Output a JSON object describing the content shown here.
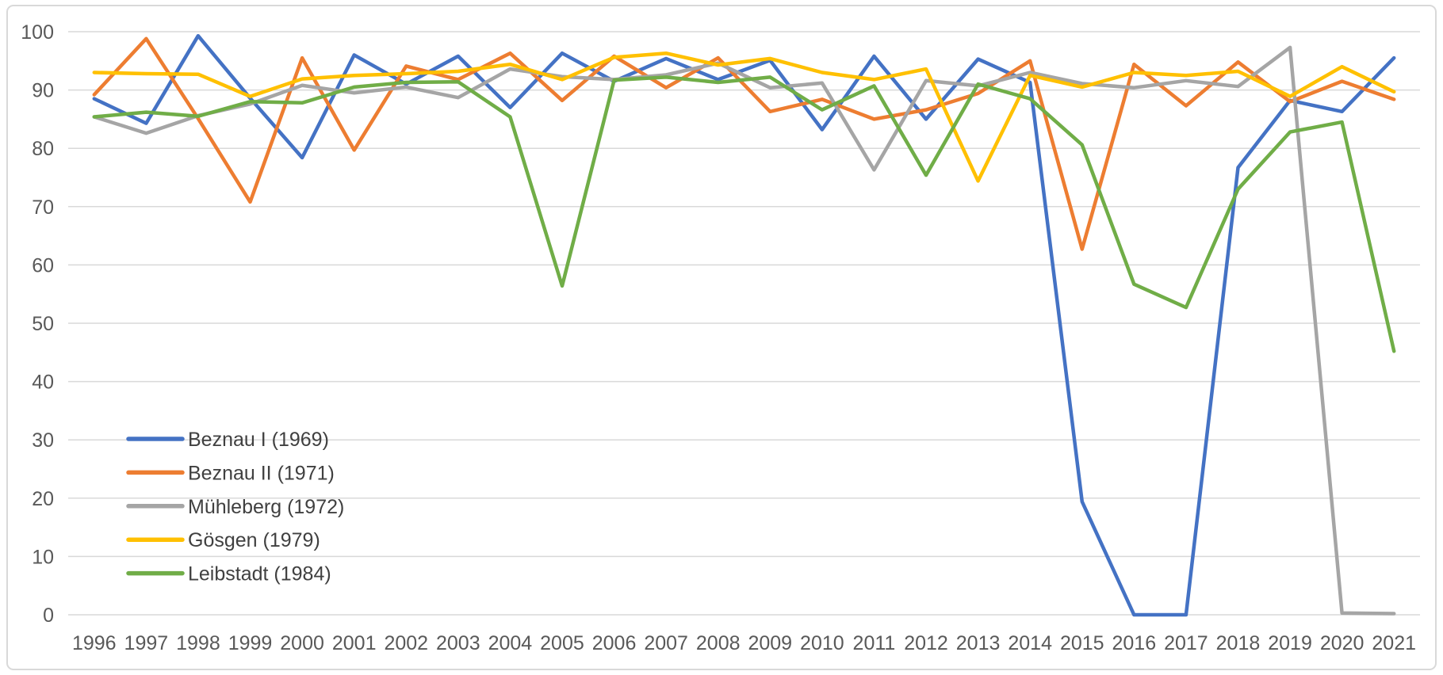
{
  "chart_data": {
    "type": "line",
    "title": "",
    "xlabel": "",
    "ylabel": "",
    "x": [
      1996,
      1997,
      1998,
      1999,
      2000,
      2001,
      2002,
      2003,
      2004,
      2005,
      2006,
      2007,
      2008,
      2009,
      2010,
      2011,
      2012,
      2013,
      2014,
      2015,
      2016,
      2017,
      2018,
      2019,
      2020,
      2021
    ],
    "y_axis": {
      "min": 0,
      "max": 100,
      "tick_step": 10,
      "ticks": [
        0,
        10,
        20,
        30,
        40,
        50,
        60,
        70,
        80,
        90,
        100
      ]
    },
    "grid": true,
    "legend_position": "inside-bottom-left",
    "series": [
      {
        "name": "Beznau I (1969)",
        "color": "#4472C4",
        "values": [
          88.5,
          84.3,
          99.3,
          88.6,
          78.4,
          96.0,
          91.0,
          95.8,
          87.0,
          96.3,
          91.5,
          95.4,
          91.8,
          95.1,
          83.2,
          95.8,
          85.0,
          95.3,
          91.3,
          19.4,
          0.0,
          0.0,
          76.7,
          88.2,
          86.3,
          95.5
        ]
      },
      {
        "name": "Beznau II (1971)",
        "color": "#ED7D31",
        "values": [
          89.2,
          98.8,
          85.1,
          70.8,
          95.5,
          79.7,
          94.1,
          91.8,
          96.3,
          88.2,
          95.8,
          90.4,
          95.5,
          86.3,
          88.4,
          85.0,
          86.6,
          89.4,
          95.0,
          62.7,
          94.4,
          87.3,
          94.8,
          88.0,
          91.5,
          88.4
        ]
      },
      {
        "name": "Mühleberg (1972)",
        "color": "#A5A5A5",
        "values": [
          85.4,
          82.6,
          85.6,
          87.6,
          90.8,
          89.5,
          90.5,
          88.7,
          93.6,
          92.3,
          91.8,
          92.6,
          94.6,
          90.4,
          91.2,
          76.3,
          91.6,
          90.7,
          93.0,
          91.1,
          90.4,
          91.6,
          90.6,
          97.3,
          0.3,
          0.2
        ]
      },
      {
        "name": "Gösgen (1979)",
        "color": "#FFC000",
        "values": [
          93.0,
          92.8,
          92.7,
          88.9,
          91.9,
          92.5,
          92.8,
          93.2,
          94.4,
          91.8,
          95.6,
          96.3,
          94.3,
          95.4,
          93.0,
          91.8,
          93.6,
          74.4,
          92.5,
          90.5,
          93.0,
          92.5,
          93.2,
          88.9,
          94.0,
          89.7
        ]
      },
      {
        "name": "Leibstadt (1984)",
        "color": "#70AD47",
        "values": [
          85.4,
          86.2,
          85.5,
          88.0,
          87.8,
          90.5,
          91.3,
          91.4,
          85.4,
          56.4,
          91.7,
          92.2,
          91.3,
          92.2,
          86.6,
          90.7,
          75.4,
          91.0,
          88.5,
          80.6,
          56.7,
          52.7,
          73.0,
          82.8,
          84.5,
          45.2
        ]
      }
    ],
    "colors": {
      "background": "#FFFFFF",
      "grid_line": "#D9D9D9",
      "chart_border": "#D9D9D9",
      "axis_text": "#595959",
      "legend_text": "#404040"
    }
  }
}
